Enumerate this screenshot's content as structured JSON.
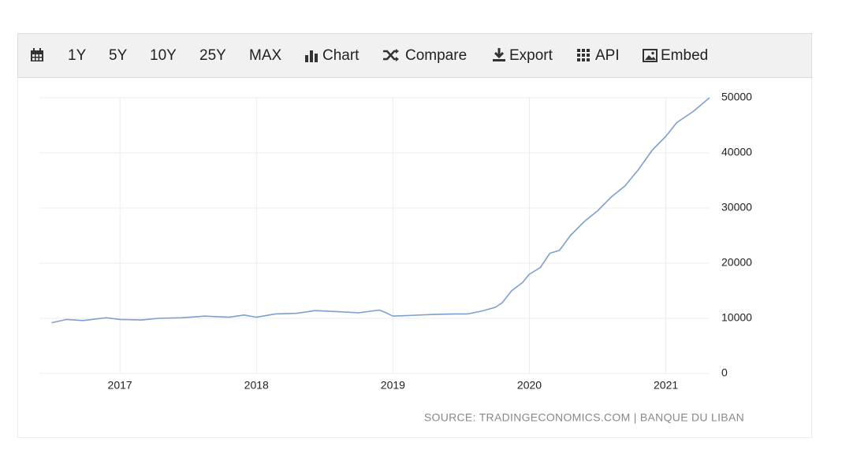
{
  "toolbar": [
    "1Y",
    "5Y",
    "10Y",
    "25Y",
    "MAX",
    "Chart",
    "Compare",
    "Export",
    "API",
    "Embed"
  ],
  "chart_data": {
    "type": "line",
    "x": [
      2016.5,
      2016.61,
      2016.73,
      2016.9,
      2017.0,
      2017.16,
      2017.28,
      2017.45,
      2017.62,
      2017.8,
      2017.91,
      2018.0,
      2018.14,
      2018.29,
      2018.43,
      2018.6,
      2018.75,
      2018.9,
      2018.95,
      2019.0,
      2019.1,
      2019.3,
      2019.45,
      2019.55,
      2019.65,
      2019.75,
      2019.8,
      2019.87,
      2019.95,
      2020.0,
      2020.08,
      2020.15,
      2020.22,
      2020.3,
      2020.4,
      2020.5,
      2020.6,
      2020.7,
      2020.8,
      2020.9,
      2021.0,
      2021.08,
      2021.2,
      2021.32
    ],
    "series": [
      {
        "color": "#7e9fcf",
        "values": [
          9200,
          9800,
          9600,
          10100,
          9800,
          9700,
          10000,
          10100,
          10400,
          10200,
          10600,
          10200,
          10800,
          10900,
          11400,
          11200,
          11000,
          11500,
          11000,
          10400,
          10500,
          10700,
          10800,
          10800,
          11300,
          12000,
          12800,
          15000,
          16500,
          18000,
          19200,
          21800,
          22300,
          25000,
          27500,
          29500,
          32000,
          34000,
          37000,
          40500,
          43000,
          45500,
          47500,
          50000
        ]
      }
    ],
    "xlim": [
      2016.41,
      2021.32
    ],
    "xticks": [
      2017,
      2018,
      2019,
      2020,
      2021
    ],
    "ylim": [
      0,
      50000
    ],
    "yticks": [
      0,
      10000,
      20000,
      30000,
      40000,
      50000
    ],
    "grid": true,
    "source": "SOURCE: TRADINGECONOMICS.COM | BANQUE DU LIBAN"
  }
}
